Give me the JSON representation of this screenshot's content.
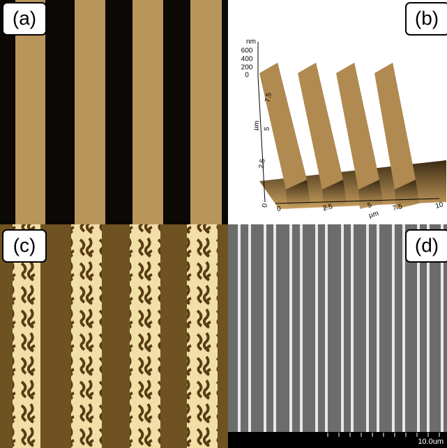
{
  "panels": [
    {
      "label": "(a)"
    },
    {
      "label": "(b)",
      "axes": {
        "z_unit": "nm",
        "z_ticks": [
          "600",
          "400",
          "200",
          "0"
        ],
        "y_unit": "µm",
        "y_ticks": [
          "7.5",
          "5",
          "2.5",
          "0"
        ],
        "x_unit": "µm",
        "x_ticks": [
          "0",
          "2.5",
          "5",
          "7.5",
          "10"
        ]
      }
    },
    {
      "label": "(c)"
    },
    {
      "label": "(d)",
      "scale_bar": "10.0um"
    }
  ]
}
